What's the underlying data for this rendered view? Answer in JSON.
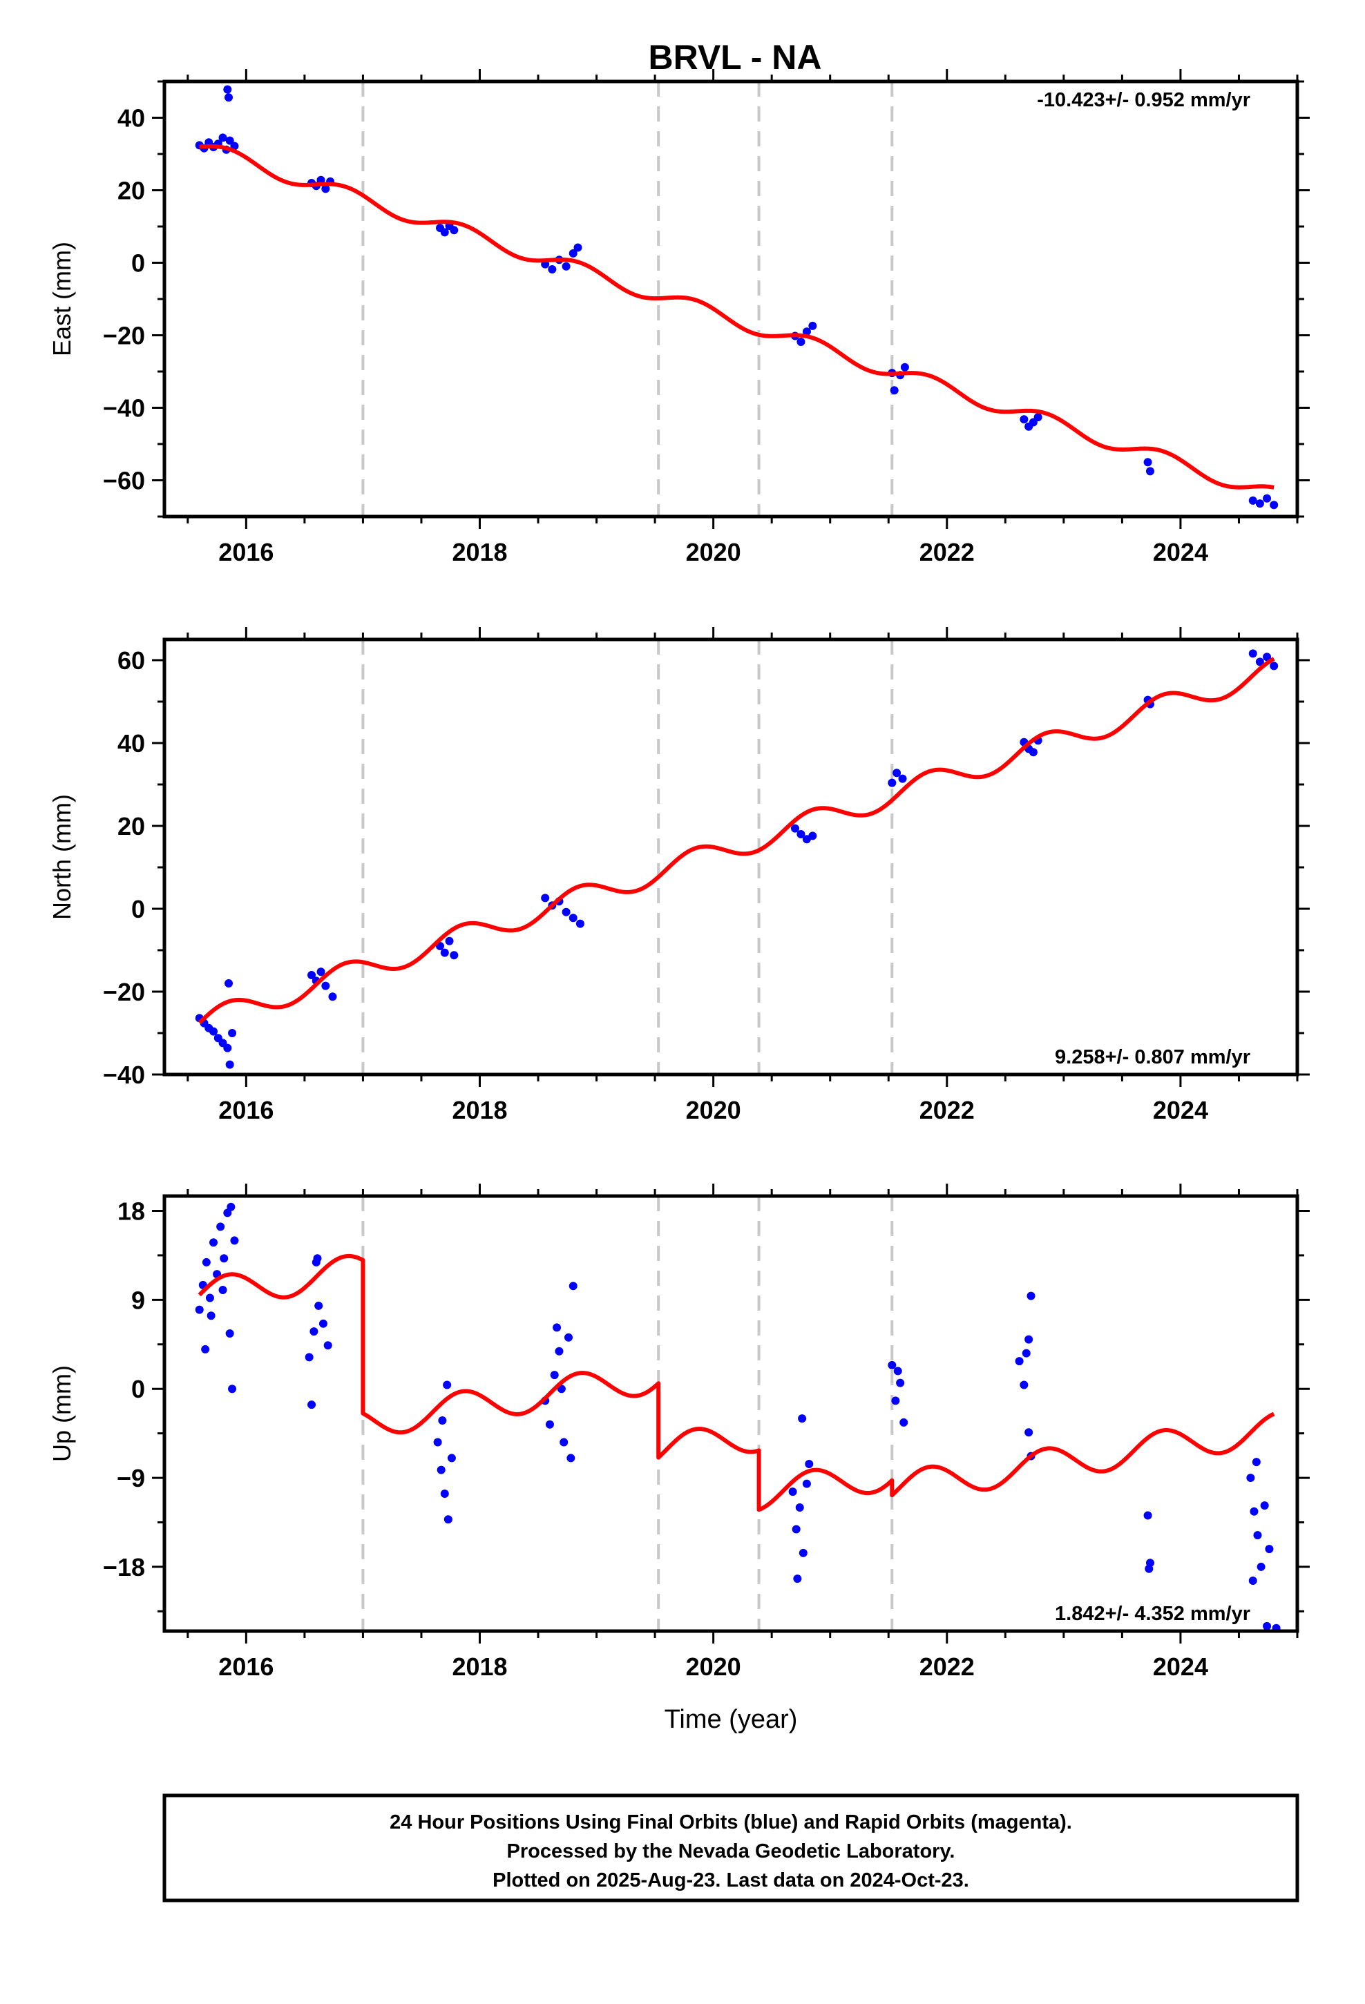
{
  "chart_data": [
    {
      "type": "scatter",
      "title": "BRVL - NA",
      "ylabel": "East (mm)",
      "xlabel": "",
      "xlim": [
        2015.3,
        2025.0
      ],
      "ylim": [
        -70,
        50
      ],
      "xticks": [
        2016,
        2018,
        2020,
        2022,
        2024
      ],
      "xtick_labels": [
        "2016",
        "2018",
        "2020",
        "2022",
        "2024"
      ],
      "yticks": [
        40,
        20,
        0,
        -20,
        -40,
        -60
      ],
      "ytick_labels": [
        "40",
        "20",
        "0",
        "−20",
        "−40",
        "−60"
      ],
      "rate_label": "-10.423+/- 0.952 mm/yr",
      "rate_position": "top-right",
      "event_lines": [
        2017.0,
        2019.53,
        2020.39,
        2021.53
      ],
      "model": {
        "intercept": 32.0,
        "x0": 2015.6,
        "rate": -10.423,
        "amp": 2.0,
        "phase": 0.0,
        "jumps": []
      },
      "observations": [
        {
          "t": 2015.6,
          "v": 32.4
        },
        {
          "t": 2015.64,
          "v": 31.6
        },
        {
          "t": 2015.68,
          "v": 33.2
        },
        {
          "t": 2015.72,
          "v": 31.9
        },
        {
          "t": 2015.76,
          "v": 32.8
        },
        {
          "t": 2015.8,
          "v": 34.5
        },
        {
          "t": 2015.83,
          "v": 31.2
        },
        {
          "t": 2015.86,
          "v": 33.7
        },
        {
          "t": 2015.9,
          "v": 32.2
        },
        {
          "t": 2015.84,
          "v": 47.8
        },
        {
          "t": 2015.85,
          "v": 45.6
        },
        {
          "t": 2016.56,
          "v": 22.0
        },
        {
          "t": 2016.6,
          "v": 21.2
        },
        {
          "t": 2016.64,
          "v": 22.8
        },
        {
          "t": 2016.68,
          "v": 20.4
        },
        {
          "t": 2016.72,
          "v": 22.4
        },
        {
          "t": 2017.66,
          "v": 9.6
        },
        {
          "t": 2017.7,
          "v": 8.4
        },
        {
          "t": 2017.74,
          "v": 10.2
        },
        {
          "t": 2017.78,
          "v": 9.0
        },
        {
          "t": 2018.56,
          "v": -0.4
        },
        {
          "t": 2018.62,
          "v": -1.8
        },
        {
          "t": 2018.68,
          "v": 0.8
        },
        {
          "t": 2018.74,
          "v": -1.0
        },
        {
          "t": 2018.8,
          "v": 2.6
        },
        {
          "t": 2018.84,
          "v": 4.2
        },
        {
          "t": 2020.7,
          "v": -20.2
        },
        {
          "t": 2020.75,
          "v": -21.8
        },
        {
          "t": 2020.8,
          "v": -19.0
        },
        {
          "t": 2020.85,
          "v": -17.4
        },
        {
          "t": 2021.53,
          "v": -30.4
        },
        {
          "t": 2021.55,
          "v": -35.2
        },
        {
          "t": 2021.6,
          "v": -31.0
        },
        {
          "t": 2021.64,
          "v": -28.8
        },
        {
          "t": 2022.66,
          "v": -43.2
        },
        {
          "t": 2022.7,
          "v": -45.2
        },
        {
          "t": 2022.74,
          "v": -44.0
        },
        {
          "t": 2022.78,
          "v": -42.6
        },
        {
          "t": 2023.72,
          "v": -55.0
        },
        {
          "t": 2023.74,
          "v": -57.5
        },
        {
          "t": 2024.62,
          "v": -65.6
        },
        {
          "t": 2024.68,
          "v": -66.4
        },
        {
          "t": 2024.74,
          "v": -65.0
        },
        {
          "t": 2024.8,
          "v": -66.8
        }
      ]
    },
    {
      "type": "scatter",
      "title": "",
      "ylabel": "North (mm)",
      "xlabel": "",
      "xlim": [
        2015.3,
        2025.0
      ],
      "ylim": [
        -40,
        65
      ],
      "xticks": [
        2016,
        2018,
        2020,
        2022,
        2024
      ],
      "xtick_labels": [
        "2016",
        "2018",
        "2020",
        "2022",
        "2024"
      ],
      "yticks": [
        60,
        40,
        20,
        0,
        -20,
        -40
      ],
      "ytick_labels": [
        "60",
        "40",
        "20",
        "0",
        "−20",
        "−40"
      ],
      "rate_label": "9.258+/- 0.807 mm/yr",
      "rate_position": "bottom-right",
      "event_lines": [
        2017.0,
        2019.53,
        2020.39,
        2021.53
      ],
      "model": {
        "intercept": -27.5,
        "x0": 2015.6,
        "rate": 9.258,
        "amp": 2.8,
        "phase": 0.0,
        "jumps": []
      },
      "observations": [
        {
          "t": 2015.6,
          "v": -26.4
        },
        {
          "t": 2015.64,
          "v": -27.6
        },
        {
          "t": 2015.68,
          "v": -28.8
        },
        {
          "t": 2015.72,
          "v": -29.6
        },
        {
          "t": 2015.76,
          "v": -31.2
        },
        {
          "t": 2015.8,
          "v": -32.4
        },
        {
          "t": 2015.84,
          "v": -33.6
        },
        {
          "t": 2015.86,
          "v": -37.6
        },
        {
          "t": 2015.85,
          "v": -18.0
        },
        {
          "t": 2015.88,
          "v": -30.0
        },
        {
          "t": 2016.56,
          "v": -16.0
        },
        {
          "t": 2016.6,
          "v": -17.4
        },
        {
          "t": 2016.64,
          "v": -15.2
        },
        {
          "t": 2016.68,
          "v": -18.6
        },
        {
          "t": 2016.74,
          "v": -21.2
        },
        {
          "t": 2017.66,
          "v": -9.0
        },
        {
          "t": 2017.7,
          "v": -10.6
        },
        {
          "t": 2017.74,
          "v": -7.8
        },
        {
          "t": 2017.78,
          "v": -11.2
        },
        {
          "t": 2018.56,
          "v": 2.6
        },
        {
          "t": 2018.62,
          "v": 0.8
        },
        {
          "t": 2018.68,
          "v": 1.8
        },
        {
          "t": 2018.74,
          "v": -0.8
        },
        {
          "t": 2018.8,
          "v": -2.2
        },
        {
          "t": 2018.86,
          "v": -3.6
        },
        {
          "t": 2020.7,
          "v": 19.4
        },
        {
          "t": 2020.75,
          "v": 18.0
        },
        {
          "t": 2020.8,
          "v": 16.8
        },
        {
          "t": 2020.85,
          "v": 17.6
        },
        {
          "t": 2021.53,
          "v": 30.4
        },
        {
          "t": 2021.57,
          "v": 32.8
        },
        {
          "t": 2021.62,
          "v": 31.4
        },
        {
          "t": 2022.66,
          "v": 40.2
        },
        {
          "t": 2022.7,
          "v": 38.6
        },
        {
          "t": 2022.74,
          "v": 37.8
        },
        {
          "t": 2022.78,
          "v": 40.6
        },
        {
          "t": 2023.72,
          "v": 50.4
        },
        {
          "t": 2023.74,
          "v": 49.4
        },
        {
          "t": 2024.62,
          "v": 61.6
        },
        {
          "t": 2024.68,
          "v": 59.6
        },
        {
          "t": 2024.74,
          "v": 60.8
        },
        {
          "t": 2024.8,
          "v": 58.6
        }
      ]
    },
    {
      "type": "scatter",
      "title": "",
      "ylabel": "Up (mm)",
      "xlabel": "Time (year)",
      "xlim": [
        2015.3,
        2025.0
      ],
      "ylim": [
        -24.5,
        19.5
      ],
      "xticks": [
        2016,
        2018,
        2020,
        2022,
        2024
      ],
      "xtick_labels": [
        "2016",
        "2018",
        "2020",
        "2022",
        "2024"
      ],
      "yticks": [
        18,
        9,
        0,
        -9,
        -18
      ],
      "ytick_labels": [
        "18",
        "9",
        "0",
        "−9",
        "−18"
      ],
      "rate_label": "1.842+/- 4.352 mm/yr",
      "rate_position": "bottom-right",
      "event_lines": [
        2017.0,
        2019.53,
        2020.39,
        2021.53
      ],
      "model": {
        "intercept": 9.5,
        "x0": 2015.6,
        "rate": 1.842,
        "amp": 1.6,
        "phase": 0.0,
        "jumps": [
          {
            "t": 2017.0,
            "v": -15.5
          },
          {
            "t": 2019.53,
            "v": -7.5
          },
          {
            "t": 2020.39,
            "v": -6.0
          },
          {
            "t": 2021.53,
            "v": -1.5
          }
        ]
      },
      "observations": [
        {
          "t": 2015.6,
          "v": 8.0
        },
        {
          "t": 2015.63,
          "v": 10.5
        },
        {
          "t": 2015.66,
          "v": 12.8
        },
        {
          "t": 2015.69,
          "v": 9.2
        },
        {
          "t": 2015.72,
          "v": 14.8
        },
        {
          "t": 2015.75,
          "v": 11.6
        },
        {
          "t": 2015.78,
          "v": 16.4
        },
        {
          "t": 2015.81,
          "v": 13.2
        },
        {
          "t": 2015.84,
          "v": 17.8
        },
        {
          "t": 2015.87,
          "v": 18.4
        },
        {
          "t": 2015.9,
          "v": 15.0
        },
        {
          "t": 2015.65,
          "v": 4.0
        },
        {
          "t": 2015.86,
          "v": 5.6
        },
        {
          "t": 2015.88,
          "v": 0.0
        },
        {
          "t": 2015.7,
          "v": 7.4
        },
        {
          "t": 2015.8,
          "v": 10.0
        },
        {
          "t": 2016.54,
          "v": 3.2
        },
        {
          "t": 2016.58,
          "v": 5.8
        },
        {
          "t": 2016.62,
          "v": 8.4
        },
        {
          "t": 2016.66,
          "v": 6.6
        },
        {
          "t": 2016.6,
          "v": 12.8
        },
        {
          "t": 2016.61,
          "v": 13.2
        },
        {
          "t": 2016.56,
          "v": -1.6
        },
        {
          "t": 2016.7,
          "v": 4.4
        },
        {
          "t": 2017.64,
          "v": -5.4
        },
        {
          "t": 2017.67,
          "v": -8.2
        },
        {
          "t": 2017.7,
          "v": -10.6
        },
        {
          "t": 2017.73,
          "v": -13.2
        },
        {
          "t": 2017.72,
          "v": 0.4
        },
        {
          "t": 2017.68,
          "v": -3.2
        },
        {
          "t": 2017.76,
          "v": -7.0
        },
        {
          "t": 2018.56,
          "v": -1.2
        },
        {
          "t": 2018.6,
          "v": -3.6
        },
        {
          "t": 2018.64,
          "v": 1.4
        },
        {
          "t": 2018.68,
          "v": 3.8
        },
        {
          "t": 2018.72,
          "v": -5.4
        },
        {
          "t": 2018.76,
          "v": 5.2
        },
        {
          "t": 2018.8,
          "v": 10.4
        },
        {
          "t": 2018.78,
          "v": -7.0
        },
        {
          "t": 2018.7,
          "v": 0.0
        },
        {
          "t": 2018.66,
          "v": 6.2
        },
        {
          "t": 2020.68,
          "v": -10.4
        },
        {
          "t": 2020.71,
          "v": -14.2
        },
        {
          "t": 2020.74,
          "v": -12.0
        },
        {
          "t": 2020.77,
          "v": -16.6
        },
        {
          "t": 2020.72,
          "v": -19.2
        },
        {
          "t": 2020.76,
          "v": -3.0
        },
        {
          "t": 2020.8,
          "v": -9.6
        },
        {
          "t": 2020.82,
          "v": -7.6
        },
        {
          "t": 2021.53,
          "v": 2.4
        },
        {
          "t": 2021.56,
          "v": -1.2
        },
        {
          "t": 2021.6,
          "v": 0.6
        },
        {
          "t": 2021.63,
          "v": -3.4
        },
        {
          "t": 2021.58,
          "v": 1.8
        },
        {
          "t": 2022.62,
          "v": 2.8
        },
        {
          "t": 2022.66,
          "v": 0.4
        },
        {
          "t": 2022.7,
          "v": 5.0
        },
        {
          "t": 2022.72,
          "v": 9.4
        },
        {
          "t": 2022.7,
          "v": -4.4
        },
        {
          "t": 2022.72,
          "v": -6.8
        },
        {
          "t": 2022.68,
          "v": 3.6
        },
        {
          "t": 2023.72,
          "v": -12.8
        },
        {
          "t": 2023.73,
          "v": -18.2
        },
        {
          "t": 2023.74,
          "v": -17.6
        },
        {
          "t": 2024.6,
          "v": -9.0
        },
        {
          "t": 2024.63,
          "v": -12.4
        },
        {
          "t": 2024.66,
          "v": -14.8
        },
        {
          "t": 2024.69,
          "v": -18.0
        },
        {
          "t": 2024.62,
          "v": -19.4
        },
        {
          "t": 2024.65,
          "v": -7.4
        },
        {
          "t": 2024.72,
          "v": -11.8
        },
        {
          "t": 2024.76,
          "v": -16.2
        },
        {
          "t": 2024.74,
          "v": -24.0
        },
        {
          "t": 2024.82,
          "v": -24.2
        }
      ]
    }
  ],
  "colors": {
    "observations": "#0000ff",
    "model": "#ff0000",
    "event_line": "#c8c8c8",
    "frame": "#000000"
  },
  "footer": {
    "line1": "24 Hour Positions Using Final Orbits (blue) and Rapid Orbits (magenta).",
    "line2": "Processed by the Nevada Geodetic Laboratory.",
    "line3": "Plotted on 2025-Aug-23. Last data on 2024-Oct-23."
  }
}
